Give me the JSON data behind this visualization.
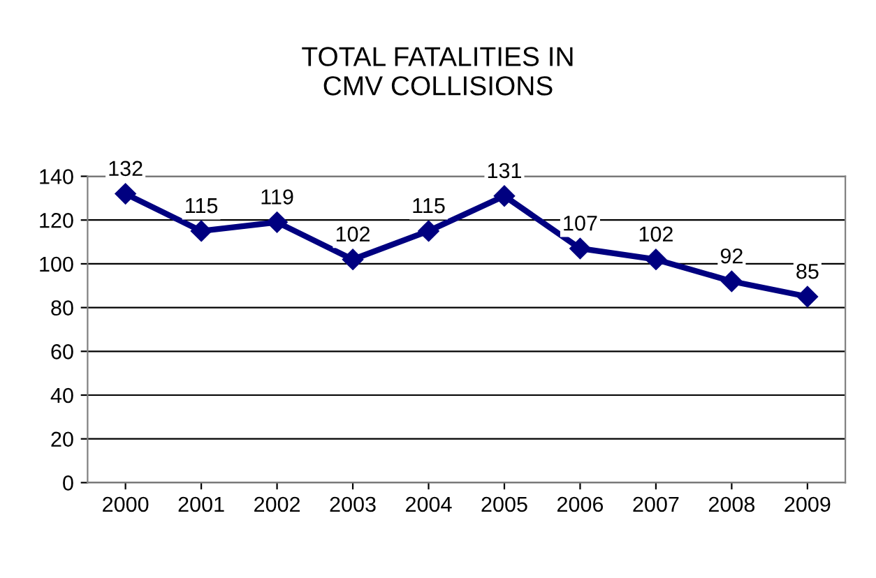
{
  "chart_data": {
    "type": "line",
    "title": "TOTAL FATALITIES IN\nCMV COLLISIONS",
    "categories": [
      "2000",
      "2001",
      "2002",
      "2003",
      "2004",
      "2005",
      "2006",
      "2007",
      "2008",
      "2009"
    ],
    "series": [
      {
        "color": "#000080",
        "values": [
          132,
          115,
          119,
          102,
          115,
          131,
          107,
          102,
          92,
          85
        ]
      }
    ],
    "ylim": [
      0,
      140
    ],
    "yticks": [
      0,
      20,
      40,
      60,
      80,
      100,
      120,
      140
    ],
    "grid": "y",
    "marker": "diamond",
    "line_style": "solid",
    "data_labels": true,
    "legend": false
  }
}
